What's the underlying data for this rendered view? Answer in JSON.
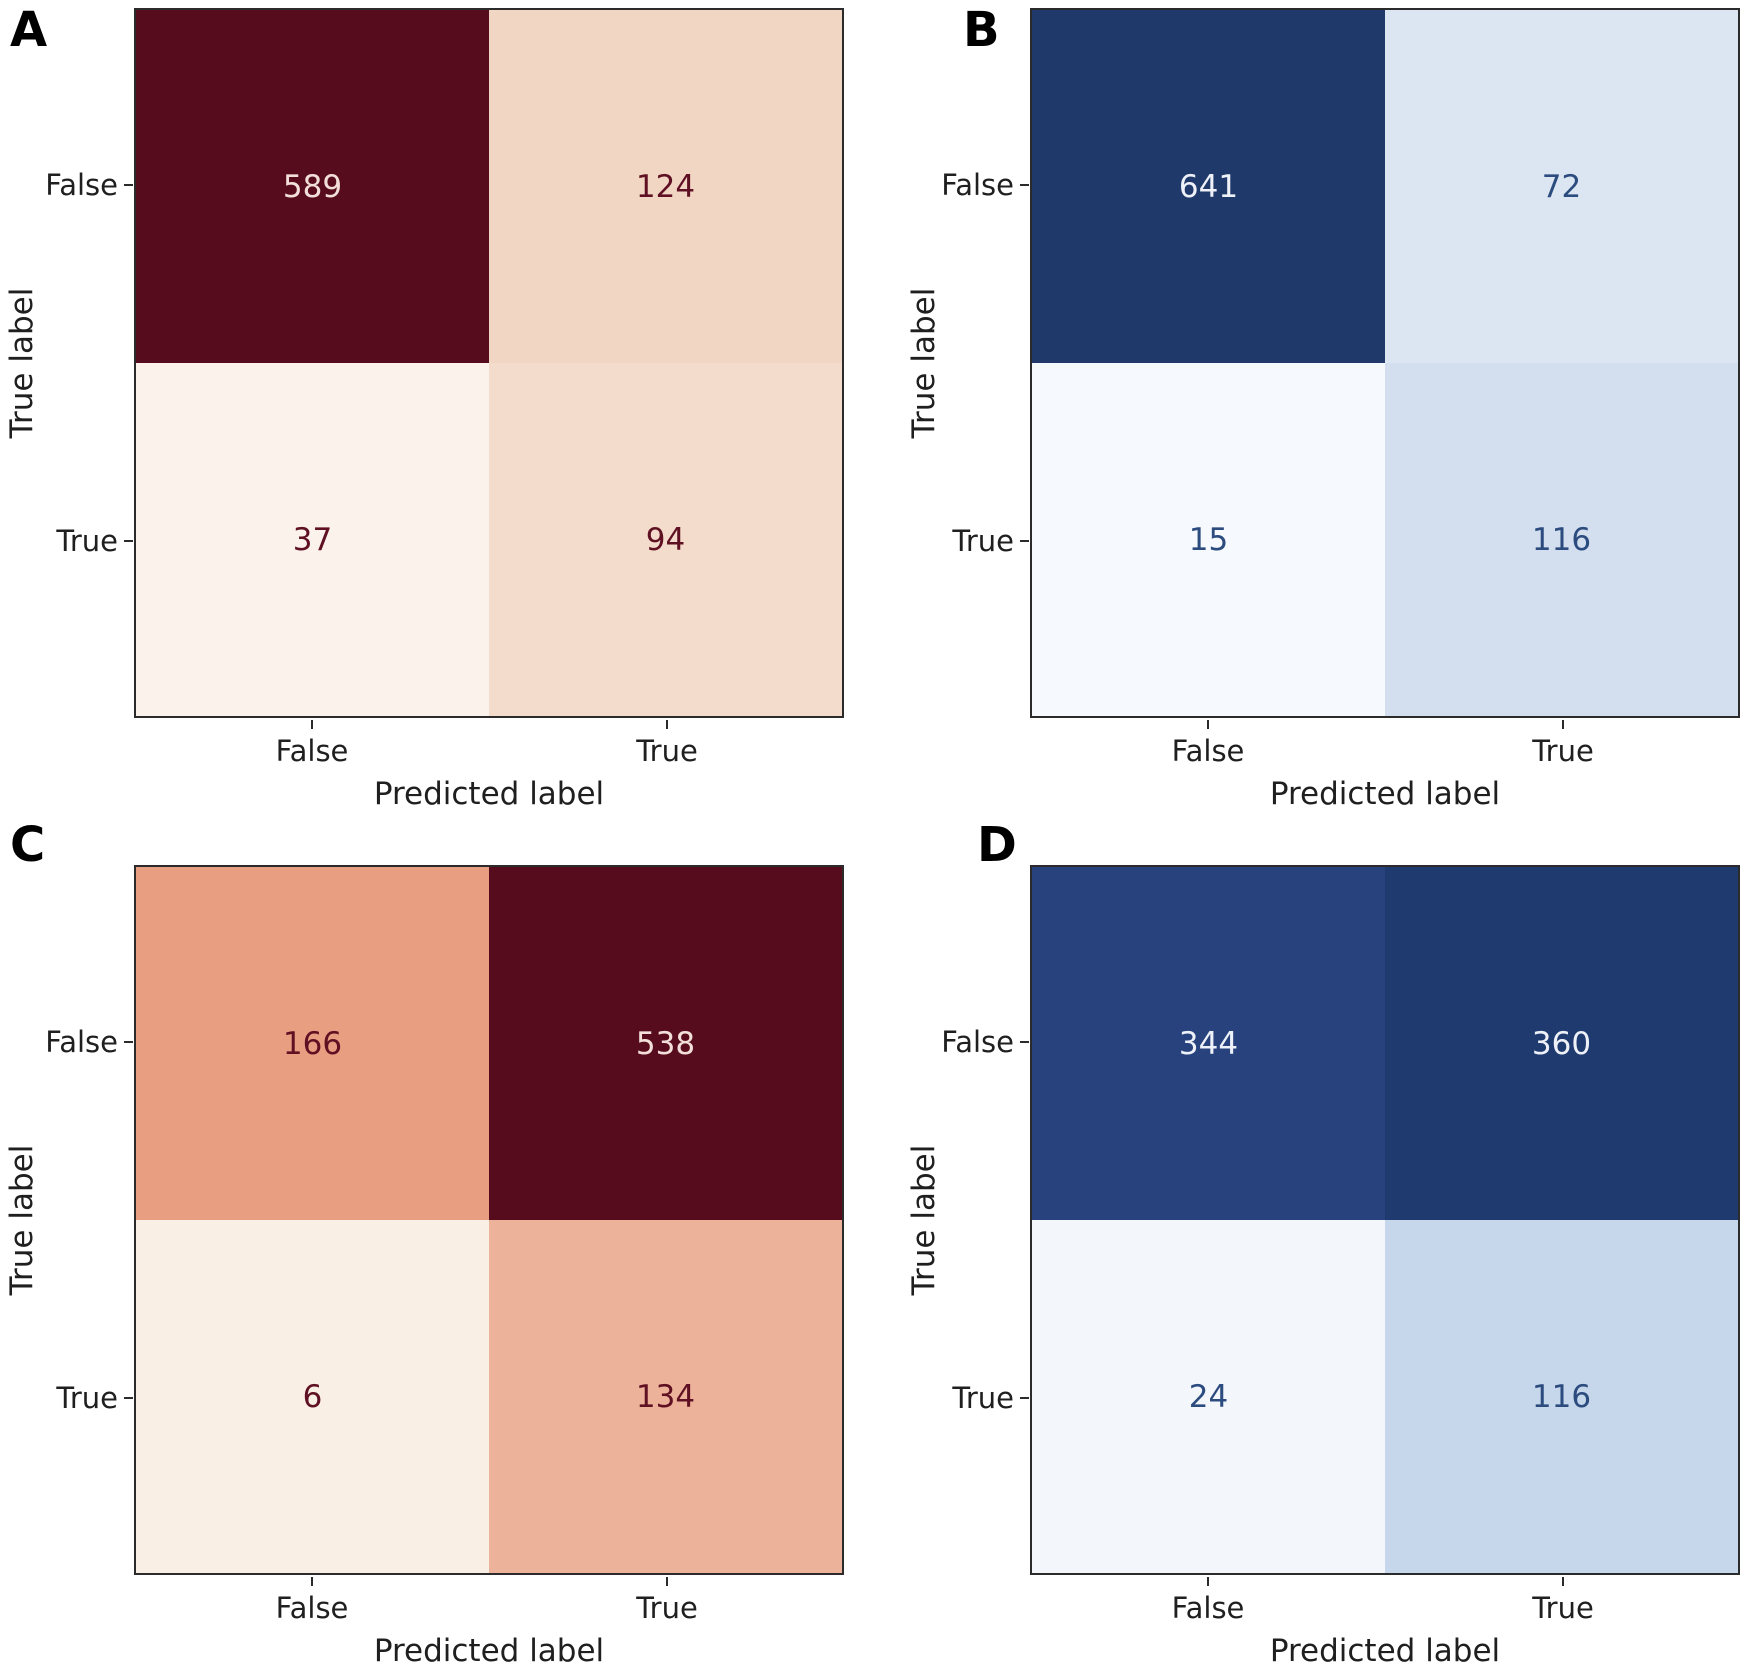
{
  "figure": {
    "background": "#ffffff",
    "axis_text_color": "#1f1f1f",
    "axis_line_color": "#2b2b2b"
  },
  "chart_data": [
    {
      "type": "heatmap",
      "panel": "A",
      "x_categories": [
        "False",
        "True"
      ],
      "y_categories": [
        "False",
        "True"
      ],
      "values": [
        [
          589,
          124
        ],
        [
          37,
          94
        ]
      ],
      "xlabel": "Predicted label",
      "ylabel": "True label",
      "legend": "none",
      "grid": false
    },
    {
      "type": "heatmap",
      "panel": "B",
      "x_categories": [
        "False",
        "True"
      ],
      "y_categories": [
        "False",
        "True"
      ],
      "values": [
        [
          641,
          72
        ],
        [
          15,
          116
        ]
      ],
      "xlabel": "Predicted label",
      "ylabel": "True label",
      "legend": "none",
      "grid": false
    },
    {
      "type": "heatmap",
      "panel": "C",
      "x_categories": [
        "False",
        "True"
      ],
      "y_categories": [
        "False",
        "True"
      ],
      "values": [
        [
          166,
          538
        ],
        [
          6,
          134
        ]
      ],
      "xlabel": "Predicted label",
      "ylabel": "True label",
      "legend": "none",
      "grid": false
    },
    {
      "type": "heatmap",
      "panel": "D",
      "x_categories": [
        "False",
        "True"
      ],
      "y_categories": [
        "False",
        "True"
      ],
      "values": [
        [
          344,
          360
        ],
        [
          24,
          116
        ]
      ],
      "xlabel": "Predicted label",
      "ylabel": "True label",
      "legend": "none",
      "grid": false
    }
  ],
  "panels": [
    {
      "label": "A",
      "x_axis": {
        "label": "Predicted label",
        "ticks": [
          "False",
          "True"
        ]
      },
      "y_axis": {
        "label": "True label",
        "ticks": [
          "False",
          "True"
        ]
      },
      "cells": [
        {
          "value": "589",
          "bg": "#570c1d",
          "fg": "#f2dfda"
        },
        {
          "value": "124",
          "bg": "#f2d6c4",
          "fg": "#5f1123"
        },
        {
          "value": "37",
          "bg": "#fbf2eb",
          "fg": "#5f1123"
        },
        {
          "value": "94",
          "bg": "#f3dccb",
          "fg": "#5f1123"
        }
      ]
    },
    {
      "label": "B",
      "x_axis": {
        "label": "Predicted label",
        "ticks": [
          "False",
          "True"
        ]
      },
      "y_axis": {
        "label": "True label",
        "ticks": [
          "False",
          "True"
        ]
      },
      "cells": [
        {
          "value": "641",
          "bg": "#20396b",
          "fg": "#eef1f7"
        },
        {
          "value": "72",
          "bg": "#dce6f2",
          "fg": "#2c4b7e"
        },
        {
          "value": "15",
          "bg": "#f6f9fd",
          "fg": "#2c4b7e"
        },
        {
          "value": "116",
          "bg": "#d3dfef",
          "fg": "#2c4b7e"
        }
      ]
    },
    {
      "label": "C",
      "x_axis": {
        "label": "Predicted label",
        "ticks": [
          "False",
          "True"
        ]
      },
      "y_axis": {
        "label": "True label",
        "ticks": [
          "False",
          "True"
        ]
      },
      "cells": [
        {
          "value": "166",
          "bg": "#e89e81",
          "fg": "#5f1123"
        },
        {
          "value": "538",
          "bg": "#570c1d",
          "fg": "#f2dfda"
        },
        {
          "value": "6",
          "bg": "#faefe5",
          "fg": "#5f1123"
        },
        {
          "value": "134",
          "bg": "#edb29a",
          "fg": "#5f1123"
        }
      ]
    },
    {
      "label": "D",
      "x_axis": {
        "label": "Predicted label",
        "ticks": [
          "False",
          "True"
        ]
      },
      "y_axis": {
        "label": "True label",
        "ticks": [
          "False",
          "True"
        ]
      },
      "cells": [
        {
          "value": "344",
          "bg": "#27427c",
          "fg": "#eef1f7"
        },
        {
          "value": "360",
          "bg": "#1f3a6e",
          "fg": "#eef1f7"
        },
        {
          "value": "24",
          "bg": "#f3f7fc",
          "fg": "#2c4b7e"
        },
        {
          "value": "116",
          "bg": "#c6d7eb",
          "fg": "#2c4b7e"
        }
      ]
    }
  ]
}
